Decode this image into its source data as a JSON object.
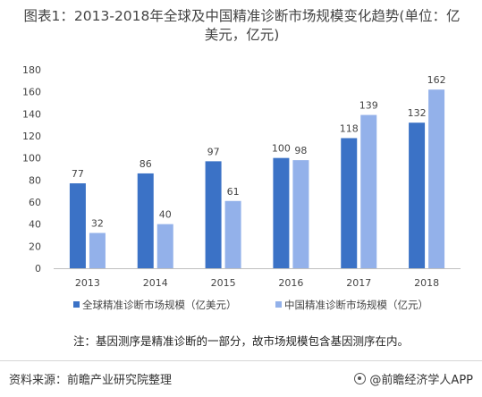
{
  "title_line1": "图表1：2013-2018年全球及中国精准诊断市场规模变化趋势(单位：亿",
  "title_line2": "美元，亿元)",
  "note": "注：基因测序是精准诊断的一部分，故市场规模包含基因测序在内。",
  "source": "资料来源：前瞻产业研究院整理",
  "brand": "@前瞻经济学人APP",
  "colors": {
    "series1": "#3b72c6",
    "series2": "#93b1ea",
    "axis": "#bfbfbf",
    "text": "#444444"
  },
  "chart_data": {
    "type": "bar",
    "categories": [
      "2013",
      "2014",
      "2015",
      "2016",
      "2017",
      "2018"
    ],
    "series": [
      {
        "name": "全球精准诊断市场规模（亿美元）",
        "values": [
          77,
          86,
          97,
          100,
          118,
          132
        ]
      },
      {
        "name": "中国精准诊断市场规模（亿元）",
        "values": [
          32,
          40,
          61,
          98,
          139,
          162
        ]
      }
    ],
    "ylim": [
      0,
      180
    ],
    "yticks": [
      0,
      20,
      40,
      60,
      80,
      100,
      120,
      140,
      160,
      180
    ],
    "grid": false,
    "legend_position": "bottom",
    "data_labels": true
  }
}
